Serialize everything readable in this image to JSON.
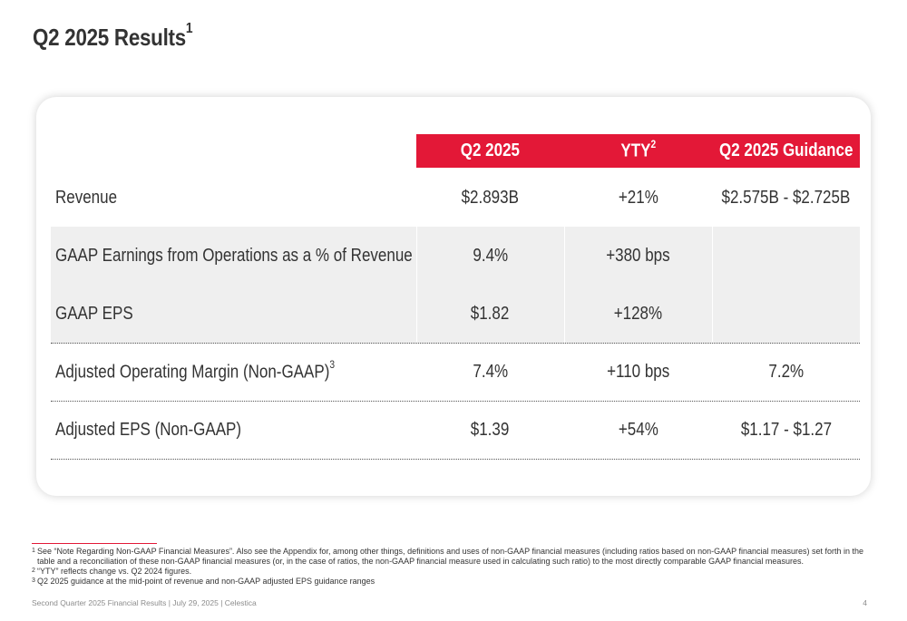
{
  "title": {
    "text": "Q2 2025 Results",
    "sup": "1"
  },
  "table": {
    "columns": [
      {
        "label": "Q2 2025",
        "sup": ""
      },
      {
        "label": "YTY",
        "sup": "2"
      },
      {
        "label": "Q2 2025 Guidance",
        "sup": ""
      }
    ],
    "rows": [
      {
        "label": "Revenue",
        "sup": "",
        "q2": "$2.893B",
        "yty": "+21%",
        "guidance": "$2.575B - $2.725B"
      },
      {
        "label": "GAAP Earnings from Operations as a % of Revenue",
        "sup": "",
        "q2": "9.4%",
        "yty": "+380 bps",
        "guidance": ""
      },
      {
        "label": "GAAP EPS",
        "sup": "",
        "q2": "$1.82",
        "yty": "+128%",
        "guidance": ""
      },
      {
        "label": "Adjusted Operating Margin (Non-GAAP)",
        "sup": "3",
        "q2": "7.4%",
        "yty": "+110 bps",
        "guidance": "7.2%"
      },
      {
        "label": "Adjusted EPS (Non-GAAP)",
        "sup": "",
        "q2": "$1.39",
        "yty": "+54%",
        "guidance": "$1.17 - $1.27"
      }
    ]
  },
  "footnotes": [
    {
      "num": "1",
      "text": "See “Note Regarding Non-GAAP Financial Measures”. Also see the Appendix for, among other things, definitions and uses of non-GAAP financial measures (including ratios based on non-GAAP financial measures) set forth in the table and a reconciliation of these non-GAAP financial measures (or, in the case of ratios, the non-GAAP financial measure used in calculating such ratio) to the most directly comparable GAAP financial measures."
    },
    {
      "num": "2",
      "text": "“YTY” reflects change vs. Q2 2024 figures."
    },
    {
      "num": "3",
      "text": "Q2 2025 guidance at the mid-point of revenue and non-GAAP adjusted EPS guidance ranges"
    }
  ],
  "footer": {
    "text": "Second Quarter 2025 Financial Results | July 29, 2025 | Celestica",
    "page": "4"
  },
  "colors": {
    "accent": "#E31837",
    "text": "#333333",
    "shade": "#efefef",
    "footer": "#8c8c8c"
  }
}
